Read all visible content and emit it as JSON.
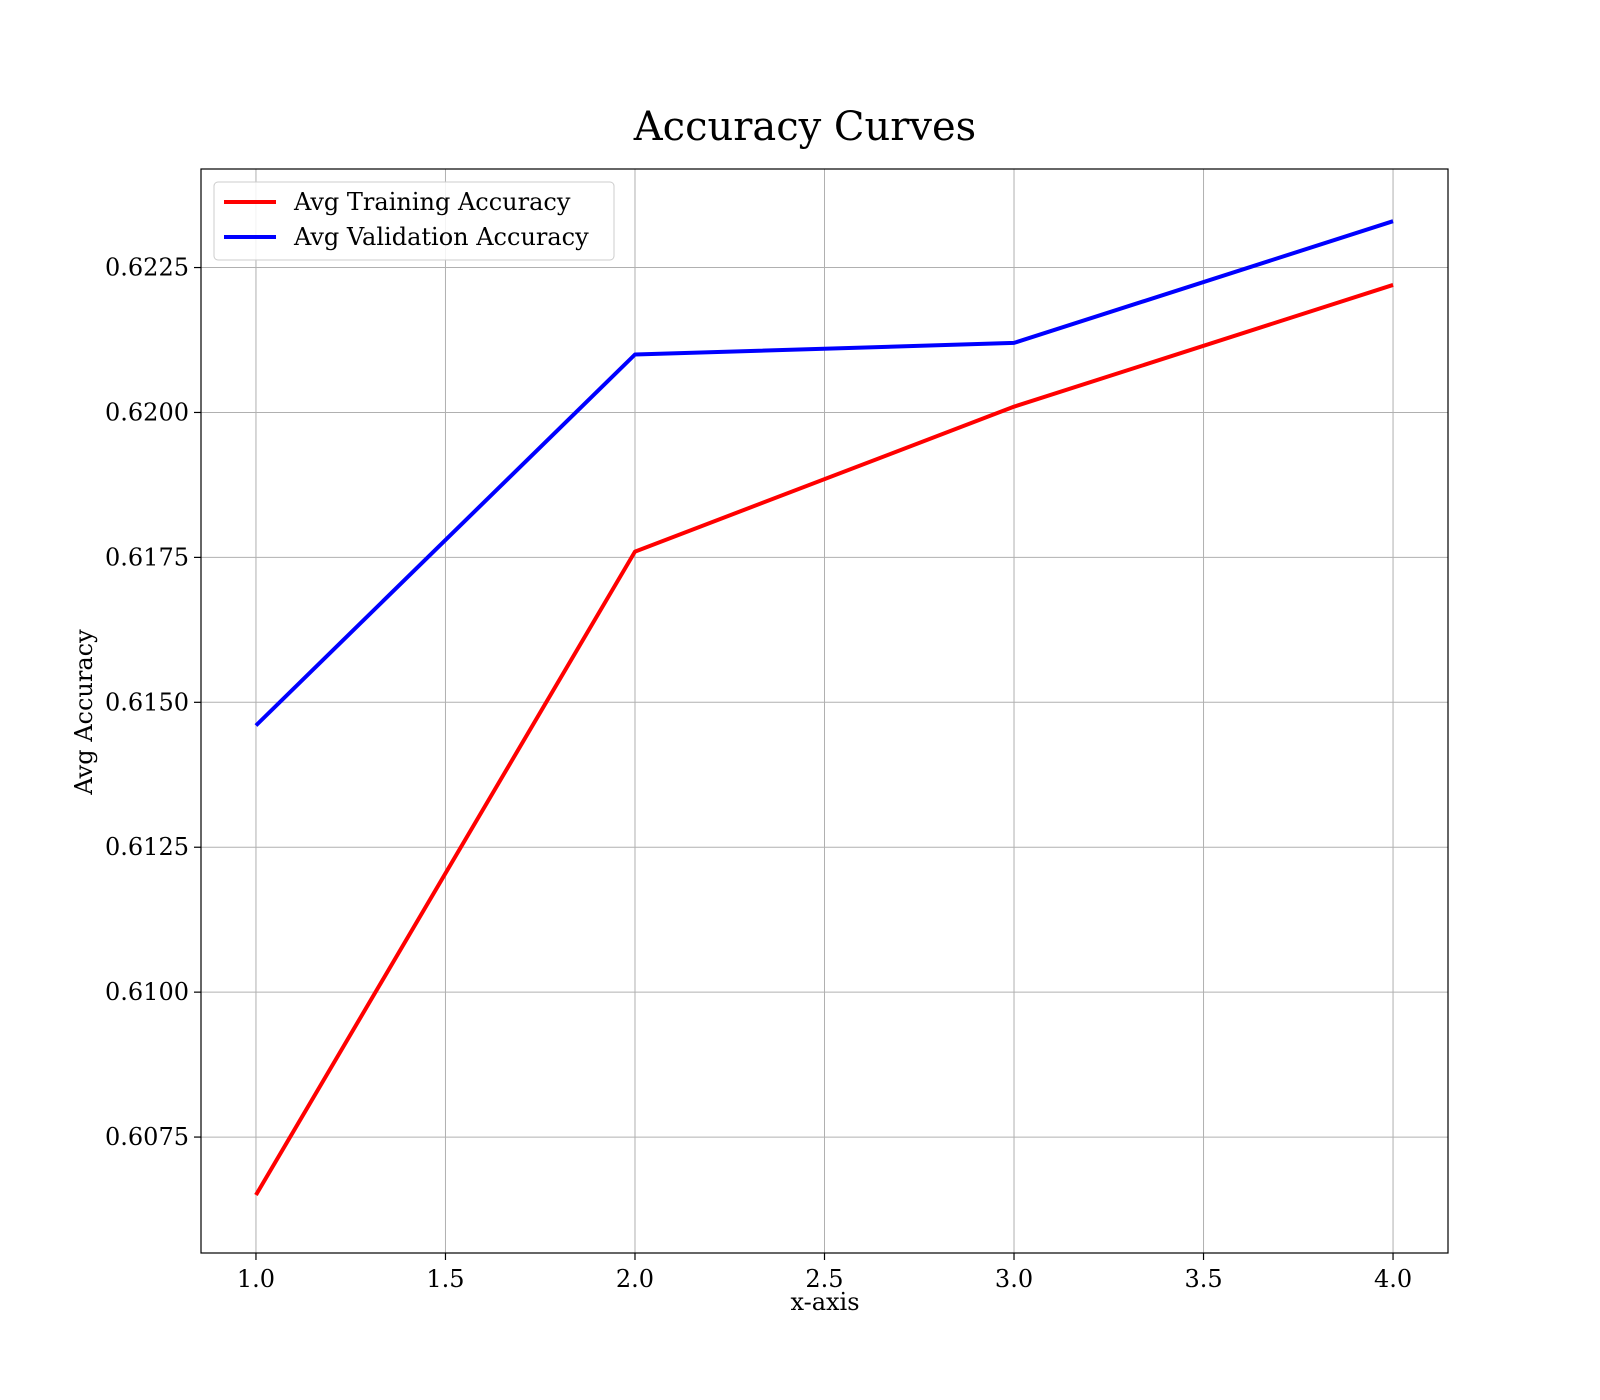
{
  "chart_data": {
    "type": "line",
    "title": "Accuracy Curves",
    "xlabel": "x-axis",
    "ylabel": "Avg Accuracy",
    "x": [
      1,
      2,
      3,
      4
    ],
    "xlim": [
      0.855,
      4.145
    ],
    "ylim": [
      0.6055,
      0.6242
    ],
    "xticks": [
      1.0,
      1.5,
      2.0,
      2.5,
      3.0,
      3.5,
      4.0
    ],
    "xtick_labels": [
      "1.0",
      "1.5",
      "2.0",
      "2.5",
      "3.0",
      "3.5",
      "4.0"
    ],
    "yticks": [
      0.6075,
      0.61,
      0.6125,
      0.615,
      0.6175,
      0.62,
      0.6225
    ],
    "ytick_labels": [
      "0.6075",
      "0.6100",
      "0.6125",
      "0.6150",
      "0.6175",
      "0.6200",
      "0.6225"
    ],
    "grid": true,
    "legend_position": "upper-left",
    "series": [
      {
        "name": "Avg Training Accuracy",
        "color": "#ff0000",
        "values": [
          0.6065,
          0.6176,
          0.6201,
          0.6222
        ]
      },
      {
        "name": "Avg Validation Accuracy",
        "color": "#0000ff",
        "values": [
          0.6146,
          0.621,
          0.6212,
          0.6233
        ]
      }
    ]
  }
}
